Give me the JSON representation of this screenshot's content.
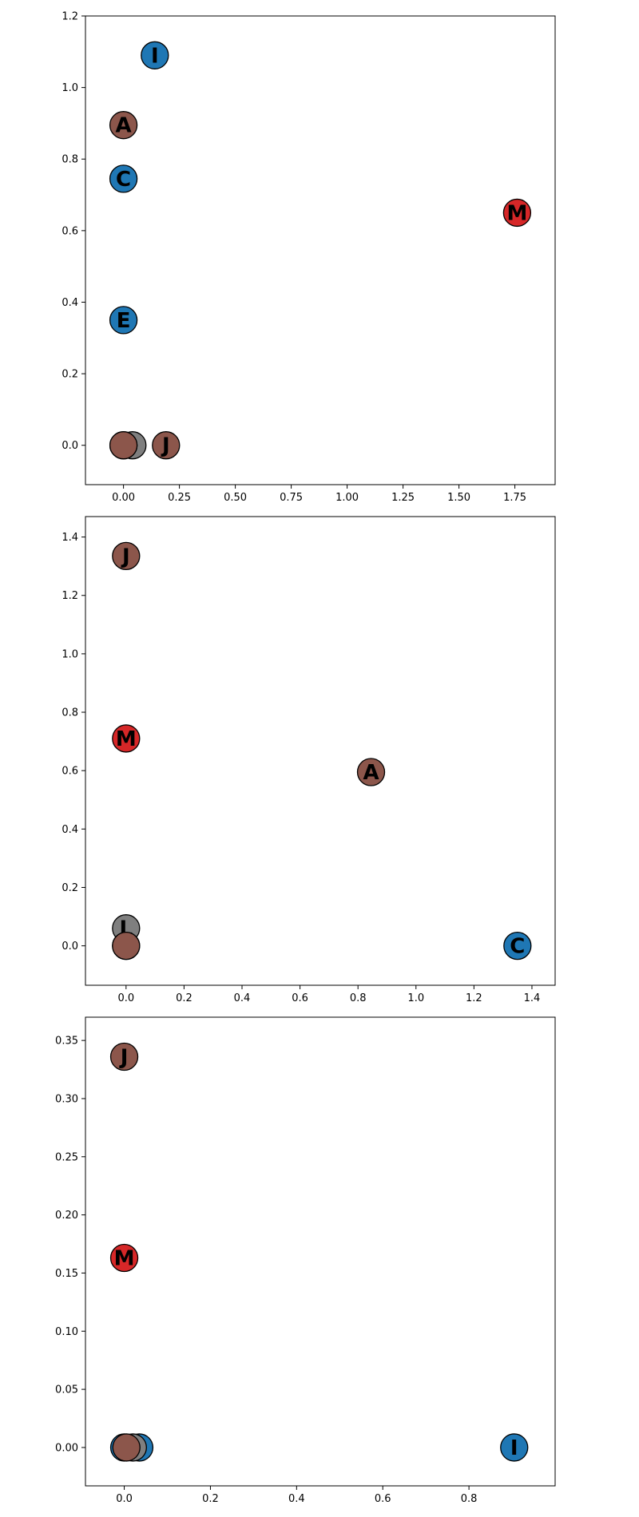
{
  "colors": {
    "blue": "#1f77b4",
    "brown": "#8c564b",
    "red": "#d62728",
    "gray": "#7f7f7f",
    "edge": "#000000"
  },
  "chart_data": [
    {
      "type": "scatter",
      "title": "",
      "xlabel": "",
      "ylabel": "",
      "xlim": [
        -0.17,
        1.93
      ],
      "ylim": [
        -0.11,
        1.2
      ],
      "xticks": [
        "0.00",
        "0.25",
        "0.50",
        "0.75",
        "1.00",
        "1.25",
        "1.50",
        "1.75"
      ],
      "yticks": [
        "0.0",
        "0.2",
        "0.4",
        "0.6",
        "0.8",
        "1.0",
        "1.2"
      ],
      "grid": false,
      "points": [
        {
          "label": "",
          "x": 0.04,
          "y": 0.0,
          "color": "gray"
        },
        {
          "label": "",
          "x": 0.0,
          "y": 0.0,
          "color": "blue"
        },
        {
          "label": "",
          "x": 0.0,
          "y": 0.0,
          "color": "brown"
        },
        {
          "label": "J",
          "x": 0.19,
          "y": 0.0,
          "color": "brown"
        },
        {
          "label": "E",
          "x": 0.0,
          "y": 0.35,
          "color": "blue"
        },
        {
          "label": "M",
          "x": 1.76,
          "y": 0.65,
          "color": "red"
        },
        {
          "label": "C",
          "x": 0.0,
          "y": 0.745,
          "color": "blue"
        },
        {
          "label": "A",
          "x": 0.0,
          "y": 0.895,
          "color": "brown"
        },
        {
          "label": "I",
          "x": 0.14,
          "y": 1.09,
          "color": "blue"
        }
      ]
    },
    {
      "type": "scatter",
      "title": "",
      "xlabel": "",
      "ylabel": "",
      "xlim": [
        -0.14,
        1.48
      ],
      "ylim": [
        -0.135,
        1.47
      ],
      "xticks": [
        "0.0",
        "0.2",
        "0.4",
        "0.6",
        "0.8",
        "1.0",
        "1.2",
        "1.4"
      ],
      "yticks": [
        "0.0",
        "0.2",
        "0.4",
        "0.6",
        "0.8",
        "1.0",
        "1.2",
        "1.4"
      ],
      "grid": false,
      "points": [
        {
          "label": "L",
          "x": 0.0,
          "y": 0.06,
          "color": "gray"
        },
        {
          "label": "",
          "x": 0.0,
          "y": 0.0,
          "color": "blue"
        },
        {
          "label": "",
          "x": 0.0,
          "y": 0.0,
          "color": "brown"
        },
        {
          "label": "C",
          "x": 1.35,
          "y": 0.0,
          "color": "blue"
        },
        {
          "label": "A",
          "x": 0.845,
          "y": 0.595,
          "color": "brown"
        },
        {
          "label": "M",
          "x": 0.0,
          "y": 0.71,
          "color": "red"
        },
        {
          "label": "J",
          "x": 0.0,
          "y": 1.335,
          "color": "brown"
        }
      ]
    },
    {
      "type": "scatter",
      "title": "",
      "xlabel": "",
      "ylabel": "",
      "xlim": [
        -0.09,
        1.0
      ],
      "ylim": [
        -0.033,
        0.37
      ],
      "xticks": [
        "0.0",
        "0.2",
        "0.4",
        "0.6",
        "0.8"
      ],
      "yticks": [
        "0.00",
        "0.05",
        "0.10",
        "0.15",
        "0.20",
        "0.25",
        "0.30",
        "0.35"
      ],
      "grid": false,
      "points": [
        {
          "label": "",
          "x": 0.035,
          "y": 0.0,
          "color": "blue"
        },
        {
          "label": "",
          "x": 0.02,
          "y": 0.0,
          "color": "gray"
        },
        {
          "label": "",
          "x": 0.0,
          "y": 0.0,
          "color": "blue"
        },
        {
          "label": "",
          "x": 0.005,
          "y": 0.0,
          "color": "brown"
        },
        {
          "label": "I",
          "x": 0.905,
          "y": 0.0,
          "color": "blue"
        },
        {
          "label": "M",
          "x": 0.0,
          "y": 0.163,
          "color": "red"
        },
        {
          "label": "J",
          "x": 0.0,
          "y": 0.336,
          "color": "brown"
        }
      ]
    }
  ]
}
